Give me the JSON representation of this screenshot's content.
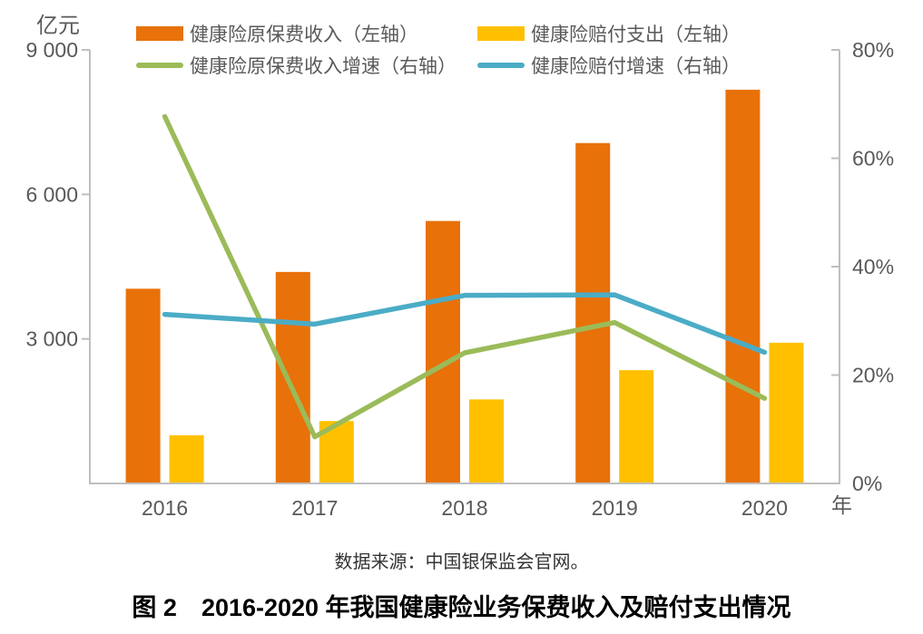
{
  "chart_data": {
    "type": "combo",
    "categories": [
      "2016",
      "2017",
      "2018",
      "2019",
      "2020"
    ],
    "x_axis_label": "年",
    "left_axis": {
      "unit_label": "亿元",
      "range": [
        0,
        9000
      ],
      "tick_values": [
        3000,
        6000,
        9000
      ],
      "tick_labels": [
        "3 000",
        "6 000",
        "9 000"
      ]
    },
    "right_axis": {
      "range": [
        0,
        80
      ],
      "tick_values": [
        0,
        20,
        40,
        60,
        80
      ],
      "tick_labels": [
        "0%",
        "20%",
        "40%",
        "60%",
        "80%"
      ]
    },
    "series": [
      {
        "name": "健康险原保费收入（左轴）",
        "kind": "bar",
        "axis": "left",
        "color": "#E8710A",
        "values": [
          4042,
          4390,
          5448,
          7066,
          8173
        ]
      },
      {
        "name": "健康险赔付支出（左轴）",
        "kind": "bar",
        "axis": "left",
        "color": "#FFC000",
        "values": [
          1001,
          1295,
          1744,
          2351,
          2921
        ]
      },
      {
        "name": "健康险原保费收入增速（右轴）",
        "kind": "line",
        "axis": "right",
        "color": "#9BBB59",
        "values": [
          67.7,
          8.6,
          24.1,
          29.7,
          15.7
        ]
      },
      {
        "name": "健康险赔付增速（右轴）",
        "kind": "line",
        "axis": "right",
        "color": "#4BACC6",
        "values": [
          31.2,
          29.4,
          34.7,
          34.8,
          24.2
        ]
      }
    ],
    "legend_position": "top",
    "grid": false,
    "axis_color": "#BFBFBF",
    "tick_text_color": "#595959"
  },
  "source_note": "数据来源：中国银保监会官网。",
  "caption": "图 2　2016-2020 年我国健康险业务保费收入及赔付支出情况"
}
